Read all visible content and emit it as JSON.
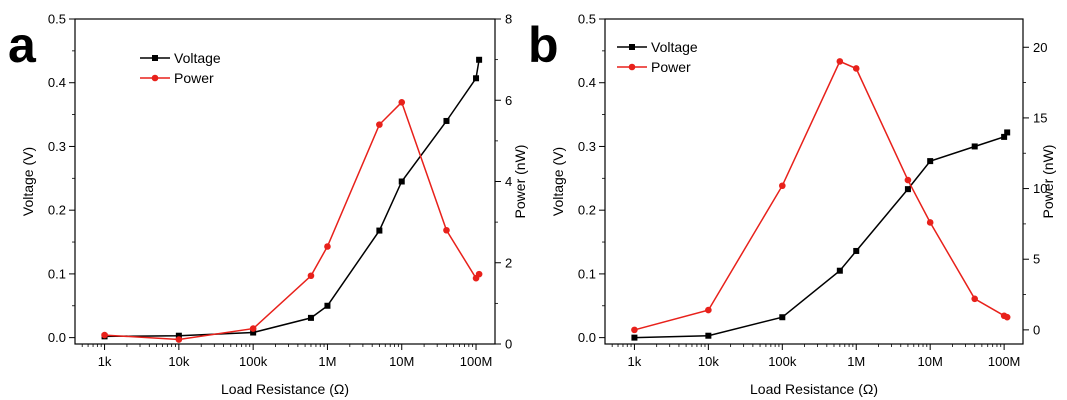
{
  "chart_data": [
    {
      "type": "line",
      "panel_label": "a",
      "xlabel": "Load Resistance (Ω)",
      "xscale": "log",
      "x_ticks": [
        1000,
        10000,
        100000,
        1000000,
        10000000,
        100000000
      ],
      "x_tick_labels": [
        "1k",
        "10k",
        "100k",
        "1M",
        "10M",
        "100M"
      ],
      "xlim": [
        400,
        180000000
      ],
      "ylabel": "Voltage (V)",
      "ylim": [
        -0.01,
        0.5
      ],
      "y_ticks": [
        0.0,
        0.1,
        0.2,
        0.3,
        0.4,
        0.5
      ],
      "y_tick_labels": [
        "0.0",
        "0.1",
        "0.2",
        "0.3",
        "0.4",
        "0.5"
      ],
      "y2label": "Power (nW)",
      "y2lim": [
        0,
        8
      ],
      "y2_ticks": [
        0,
        2,
        4,
        6,
        8
      ],
      "y2_tick_labels": [
        "0",
        "2",
        "4",
        "6",
        "8"
      ],
      "legend_position": "top-left",
      "series": [
        {
          "name": "Voltage",
          "axis": "left",
          "color": "#000000",
          "marker": "square",
          "x": [
            1000,
            10000,
            100000,
            600000,
            1000000,
            5000000,
            10000000,
            40000000,
            100000000,
            110000000
          ],
          "y": [
            0.002,
            0.003,
            0.008,
            0.031,
            0.05,
            0.168,
            0.245,
            0.34,
            0.407,
            0.436
          ]
        },
        {
          "name": "Power",
          "axis": "right",
          "color": "#e8211b",
          "marker": "circle",
          "x": [
            1000,
            10000,
            100000,
            600000,
            1000000,
            5000000,
            10000000,
            40000000,
            100000000,
            110000000
          ],
          "y": [
            0.22,
            0.11,
            0.38,
            1.68,
            2.4,
            5.4,
            5.95,
            2.8,
            1.62,
            1.72
          ]
        }
      ]
    },
    {
      "type": "line",
      "panel_label": "b",
      "xlabel": "Load Resistance (Ω)",
      "xscale": "log",
      "x_ticks": [
        1000,
        10000,
        100000,
        1000000,
        10000000,
        100000000
      ],
      "x_tick_labels": [
        "1k",
        "10k",
        "100k",
        "1M",
        "10M",
        "100M"
      ],
      "xlim": [
        400,
        180000000
      ],
      "ylabel": "Voltage (V)",
      "ylim": [
        -0.01,
        0.5
      ],
      "y_ticks": [
        0.0,
        0.1,
        0.2,
        0.3,
        0.4,
        0.5
      ],
      "y_tick_labels": [
        "0.0",
        "0.1",
        "0.2",
        "0.3",
        "0.4",
        "0.5"
      ],
      "y2label": "Power (nW)",
      "y2lim": [
        -1,
        22
      ],
      "y2_ticks": [
        0,
        5,
        10,
        15,
        20
      ],
      "y2_tick_labels": [
        "0",
        "5",
        "10",
        "15",
        "20"
      ],
      "legend_position": "top-left",
      "series": [
        {
          "name": "Voltage",
          "axis": "left",
          "color": "#000000",
          "marker": "square",
          "x": [
            1000,
            10000,
            100000,
            600000,
            1000000,
            5000000,
            10000000,
            40000000,
            100000000,
            110000000
          ],
          "y": [
            0.0,
            0.003,
            0.032,
            0.105,
            0.136,
            0.233,
            0.277,
            0.3,
            0.315,
            0.322
          ]
        },
        {
          "name": "Power",
          "axis": "right",
          "color": "#e8211b",
          "marker": "circle",
          "x": [
            1000,
            10000,
            100000,
            600000,
            1000000,
            5000000,
            10000000,
            40000000,
            100000000,
            110000000
          ],
          "y": [
            0.0,
            1.4,
            10.2,
            19.0,
            18.5,
            10.6,
            7.6,
            2.2,
            1.0,
            0.9
          ]
        }
      ]
    }
  ]
}
